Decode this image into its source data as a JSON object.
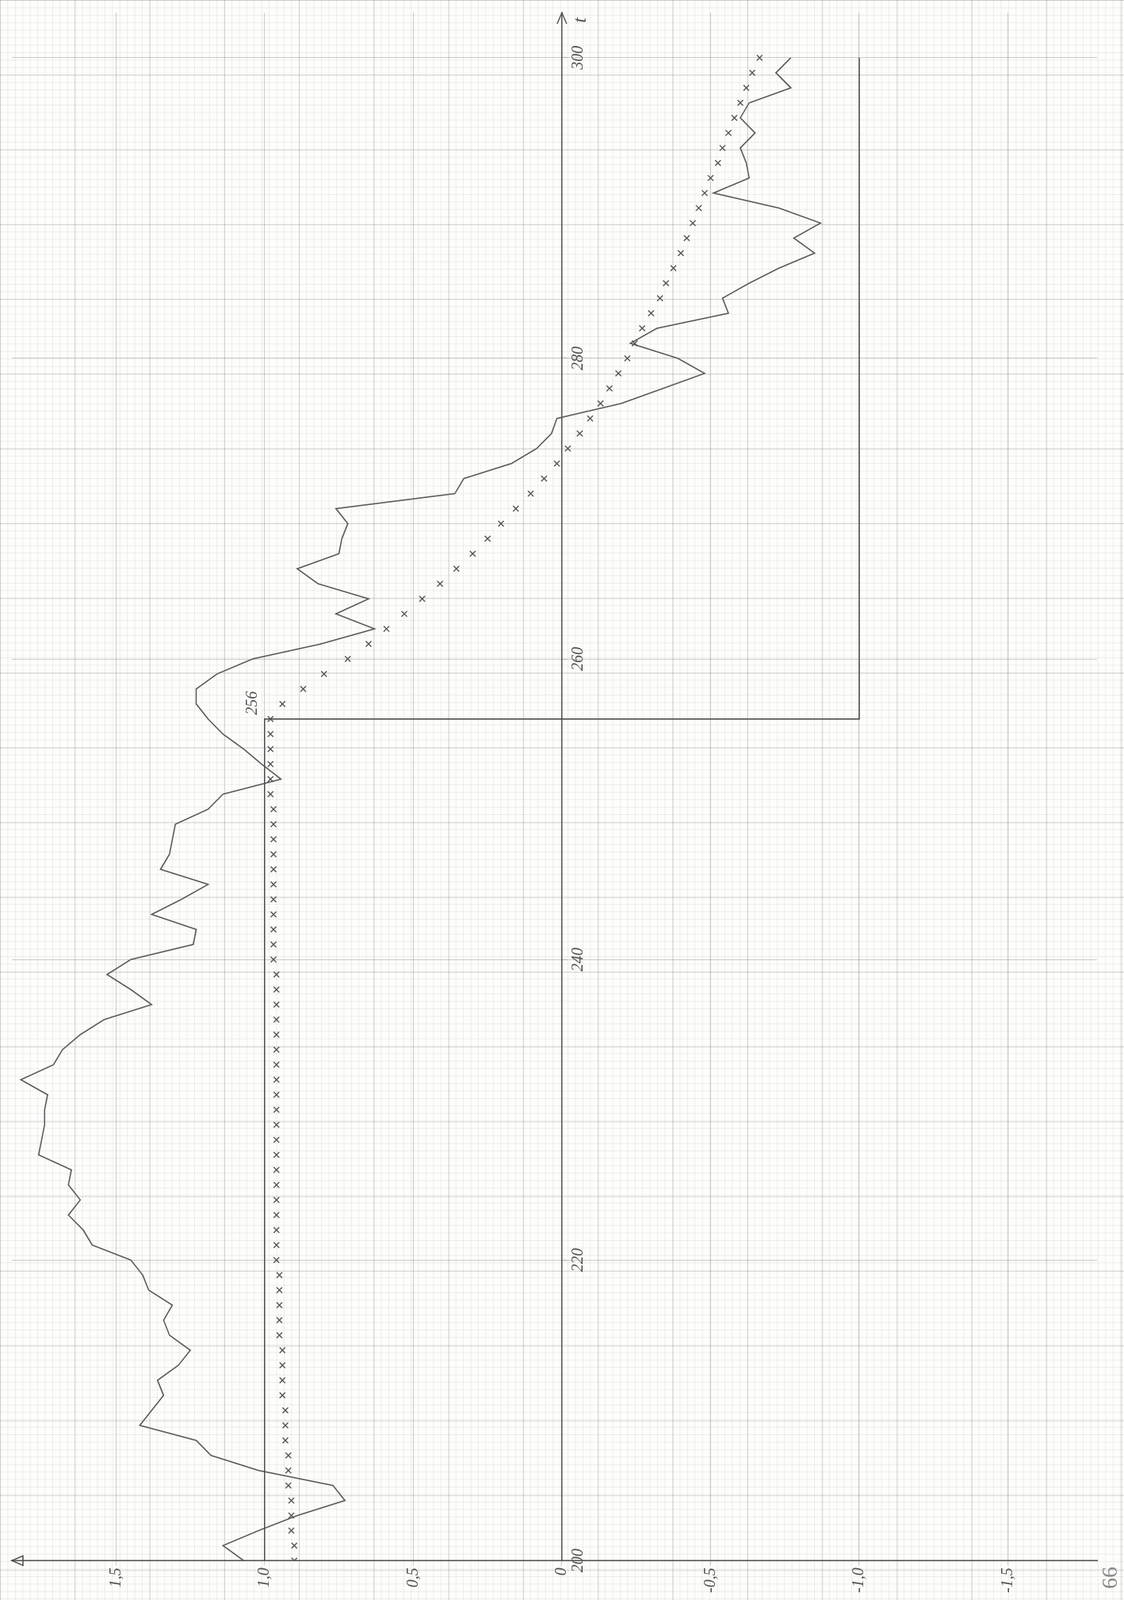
{
  "chart_data": {
    "type": "line",
    "x_label": "t",
    "xlim": [
      200,
      303
    ],
    "xticks": [
      200,
      220,
      240,
      260,
      280,
      300
    ],
    "ylim": [
      -1.8,
      1.85
    ],
    "yticks": [
      {
        "value": -1.5,
        "label": "-1,5"
      },
      {
        "value": -1.0,
        "label": "-1,0"
      },
      {
        "value": -0.5,
        "label": "-0,5"
      },
      0,
      {
        "value": 0.5,
        "label": "0,5"
      },
      {
        "value": 1.0,
        "label": "1,0"
      },
      {
        "value": 1.5,
        "label": "1,5"
      }
    ],
    "grid": true,
    "annotations": [
      {
        "text": "256",
        "x": 256,
        "y": 1.0
      },
      {
        "text": "66"
      }
    ],
    "series": [
      {
        "color": "#4a4a4a",
        "line_style": "solid",
        "marker": "none",
        "x": [
          200,
          256,
          256,
          300
        ],
        "values": [
          1.0,
          1.0,
          -1.0,
          -1.0
        ]
      },
      {
        "color": "#555555",
        "line_style": "none",
        "marker": "cross",
        "x": [
          200,
          201,
          202,
          203,
          204,
          205,
          206,
          207,
          208,
          209,
          210,
          211,
          212,
          213,
          214,
          215,
          216,
          217,
          218,
          219,
          220,
          221,
          222,
          223,
          224,
          225,
          226,
          227,
          228,
          229,
          230,
          231,
          232,
          233,
          234,
          235,
          236,
          237,
          238,
          239,
          240,
          241,
          242,
          243,
          244,
          245,
          246,
          247,
          248,
          249,
          250,
          251,
          252,
          253,
          254,
          255,
          256,
          257,
          258,
          259,
          260,
          261,
          262,
          263,
          264,
          265,
          266,
          267,
          268,
          269,
          270,
          271,
          272,
          273,
          274,
          275,
          276,
          277,
          278,
          279,
          280,
          281,
          282,
          283,
          284,
          285,
          286,
          287,
          288,
          289,
          290,
          291,
          292,
          293,
          294,
          295,
          296,
          297,
          298,
          299,
          300
        ],
        "values": [
          0.9,
          0.9,
          0.91,
          0.91,
          0.91,
          0.92,
          0.92,
          0.92,
          0.93,
          0.93,
          0.93,
          0.94,
          0.94,
          0.94,
          0.94,
          0.95,
          0.95,
          0.95,
          0.95,
          0.95,
          0.96,
          0.96,
          0.96,
          0.96,
          0.96,
          0.96,
          0.96,
          0.96,
          0.96,
          0.96,
          0.96,
          0.96,
          0.96,
          0.96,
          0.96,
          0.96,
          0.96,
          0.96,
          0.96,
          0.96,
          0.97,
          0.97,
          0.97,
          0.97,
          0.97,
          0.97,
          0.97,
          0.97,
          0.97,
          0.97,
          0.97,
          0.98,
          0.98,
          0.98,
          0.98,
          0.98,
          0.98,
          0.94,
          0.87,
          0.8,
          0.72,
          0.65,
          0.59,
          0.53,
          0.47,
          0.41,
          0.355,
          0.3,
          0.25,
          0.205,
          0.155,
          0.105,
          0.06,
          0.017,
          -0.02,
          -0.06,
          -0.095,
          -0.13,
          -0.16,
          -0.19,
          -0.22,
          -0.245,
          -0.27,
          -0.3,
          -0.33,
          -0.35,
          -0.375,
          -0.4,
          -0.42,
          -0.44,
          -0.46,
          -0.48,
          -0.5,
          -0.525,
          -0.54,
          -0.56,
          -0.58,
          -0.6,
          -0.62,
          -0.64,
          -0.665
        ]
      },
      {
        "color": "#5a5a5a",
        "line_style": "solid",
        "marker": "none",
        "x": [
          200,
          201,
          202,
          203,
          204,
          205,
          206,
          207,
          208,
          209,
          210,
          211,
          212,
          213,
          214,
          215,
          216,
          217,
          218,
          219,
          220,
          221,
          222,
          223,
          224,
          225,
          226,
          227,
          228,
          229,
          230,
          231,
          232,
          233,
          234,
          235,
          236,
          237,
          238,
          239,
          240,
          241,
          242,
          243,
          244,
          245,
          246,
          247,
          248,
          249,
          250,
          251,
          252,
          253,
          254,
          255,
          256,
          257,
          258,
          259,
          260,
          261,
          262,
          263,
          264,
          265,
          266,
          267,
          268,
          269,
          270,
          271,
          272,
          273,
          274,
          275,
          276,
          277,
          278,
          279,
          280,
          281,
          282,
          283,
          284,
          285,
          286,
          287,
          288,
          289,
          290,
          291,
          292,
          293,
          294,
          295,
          296,
          297,
          298,
          299,
          300
        ],
        "values": [
          1.07,
          1.14,
          1.02,
          0.89,
          0.73,
          0.77,
          1.02,
          1.18,
          1.23,
          1.42,
          1.38,
          1.34,
          1.36,
          1.29,
          1.25,
          1.32,
          1.34,
          1.31,
          1.39,
          1.41,
          1.45,
          1.58,
          1.61,
          1.66,
          1.62,
          1.66,
          1.65,
          1.76,
          1.75,
          1.74,
          1.74,
          1.73,
          1.82,
          1.71,
          1.68,
          1.62,
          1.54,
          1.38,
          1.45,
          1.53,
          1.45,
          1.24,
          1.23,
          1.38,
          1.28,
          1.19,
          1.35,
          1.32,
          1.31,
          1.3,
          1.19,
          1.14,
          0.945,
          1.01,
          1.07,
          1.14,
          1.19,
          1.23,
          1.23,
          1.16,
          1.04,
          0.81,
          0.63,
          0.76,
          0.65,
          0.82,
          0.89,
          0.75,
          0.74,
          0.72,
          0.76,
          0.36,
          0.33,
          0.17,
          0.085,
          0.035,
          0.017,
          -0.2,
          -0.34,
          -0.48,
          -0.39,
          -0.23,
          -0.32,
          -0.56,
          -0.54,
          -0.63,
          -0.73,
          -0.85,
          -0.78,
          -0.87,
          -0.73,
          -0.51,
          -0.63,
          -0.62,
          -0.6,
          -0.65,
          -0.6,
          -0.63,
          -0.77,
          -0.72,
          -0.77
        ]
      }
    ]
  }
}
